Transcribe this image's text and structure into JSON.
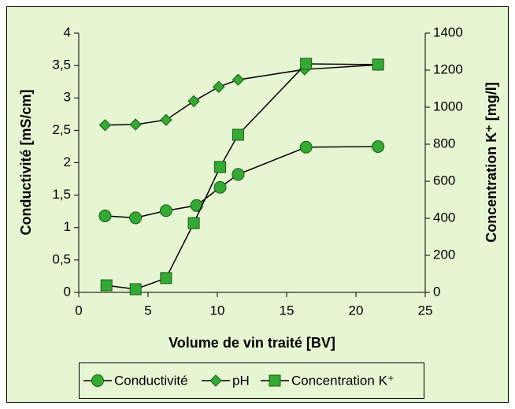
{
  "chart_data": {
    "type": "line",
    "xlabel": "Volume de vin traité [BV]",
    "ylabel": "Conductivité [mS/cm]",
    "y2label": "Concentration K⁺ [mg/l]",
    "xlim": [
      0,
      25
    ],
    "xticks": [
      0,
      5,
      10,
      15,
      20,
      25
    ],
    "ylim": [
      0,
      4
    ],
    "yticks": [
      0,
      {
        "value": 0.5,
        "label": "0,5"
      },
      1,
      {
        "value": 1.5,
        "label": "1,5"
      },
      2,
      {
        "value": 2.5,
        "label": "2,5"
      },
      3,
      {
        "value": 3.5,
        "label": "3,5"
      },
      4
    ],
    "y2lim": [
      0,
      1400
    ],
    "y2ticks": [
      0,
      200,
      400,
      600,
      800,
      1000,
      1200,
      1400
    ],
    "grid": false,
    "legend": "bottom",
    "series": [
      {
        "name": "Conductivité",
        "color": "#33aa33",
        "marker": "circle",
        "axis": "y",
        "x": [
          1.9,
          4.1,
          6.3,
          8.5,
          10.2,
          11.5,
          16.4,
          21.6
        ],
        "values": [
          1.18,
          1.15,
          1.26,
          1.34,
          1.62,
          1.82,
          2.24,
          2.25
        ]
      },
      {
        "name": "pH",
        "color": "#33aa33",
        "marker": "diamond",
        "axis": "y",
        "x": [
          1.9,
          4.1,
          6.3,
          8.3,
          10.1,
          11.5,
          16.3,
          21.6
        ],
        "values": [
          2.58,
          2.59,
          2.66,
          2.95,
          3.17,
          3.28,
          3.44,
          3.51
        ]
      },
      {
        "name": "Concentration K⁺",
        "color": "#33aa33",
        "marker": "square",
        "axis": "y2",
        "x": [
          2.0,
          4.1,
          6.3,
          8.3,
          10.2,
          11.5,
          16.4,
          21.6
        ],
        "values": [
          38,
          17,
          77,
          374,
          677,
          851,
          1234,
          1230
        ]
      }
    ]
  }
}
